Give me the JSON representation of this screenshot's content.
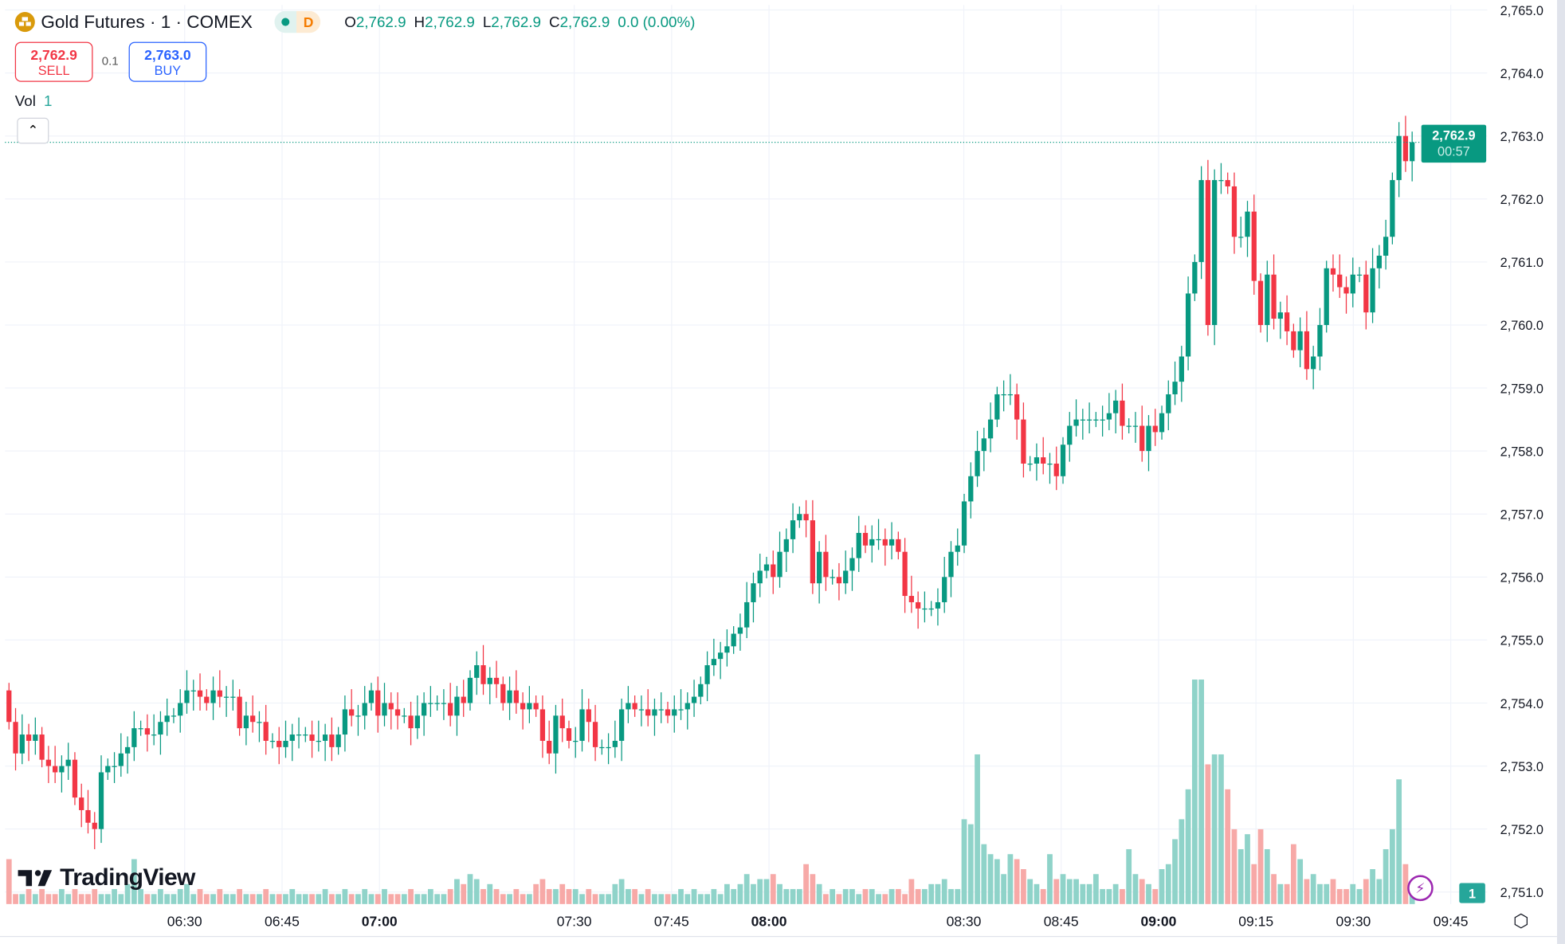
{
  "header": {
    "symbol_title": "Gold Futures · 1 · COMEX",
    "market_status_letter": "D",
    "ohlc": {
      "o_label": "O",
      "o": "2,762.9",
      "h_label": "H",
      "h": "2,762.9",
      "l_label": "L",
      "l": "2,762.9",
      "c_label": "C",
      "c": "2,762.9",
      "change": "0.0 (0.00%)"
    }
  },
  "trade": {
    "sell_price": "2,762.9",
    "sell_label": "SELL",
    "spread": "0.1",
    "buy_price": "2,763.0",
    "buy_label": "BUY"
  },
  "volume_legend": {
    "label": "Vol",
    "value": "1"
  },
  "branding": {
    "logo_text": "TradingView"
  },
  "last_price": {
    "price": "2,762.9",
    "countdown": "00:57"
  },
  "volume_axis_label": "1",
  "colors": {
    "up": "#089981",
    "down": "#f23645",
    "vol_up": "#8fd3c9",
    "vol_down": "#f7a9a7",
    "grid": "#f0f3fa"
  },
  "chart_data": {
    "type": "candlestick",
    "price_axis": {
      "range": [
        2751.0,
        2765.0
      ],
      "ticks": [
        "2,765.0",
        "2,764.0",
        "2,763.0",
        "2,762.0",
        "2,761.0",
        "2,760.0",
        "2,759.0",
        "2,758.0",
        "2,757.0",
        "2,756.0",
        "2,755.0",
        "2,754.0",
        "2,753.0",
        "2,752.0",
        "2,751.0"
      ]
    },
    "time_axis": {
      "ticks": [
        {
          "label": "06:30",
          "bold": false
        },
        {
          "label": "06:45",
          "bold": false
        },
        {
          "label": "07:00",
          "bold": true
        },
        {
          "label": "07:30",
          "bold": false
        },
        {
          "label": "07:45",
          "bold": false
        },
        {
          "label": "08:00",
          "bold": true
        },
        {
          "label": "08:30",
          "bold": false
        },
        {
          "label": "08:45",
          "bold": false
        },
        {
          "label": "09:00",
          "bold": true
        },
        {
          "label": "09:15",
          "bold": false
        },
        {
          "label": "09:30",
          "bold": false
        },
        {
          "label": "09:45",
          "bold": false
        }
      ]
    },
    "grid": true,
    "closes": [
      2753.7,
      2753.2,
      2753.5,
      2753.4,
      2753.5,
      2753.1,
      2753.0,
      2752.9,
      2753.0,
      2753.1,
      2752.5,
      2752.3,
      2752.1,
      2752.0,
      2752.9,
      2753.0,
      2753.0,
      2753.2,
      2753.3,
      2753.6,
      2753.6,
      2753.5,
      2753.5,
      2753.7,
      2753.8,
      2753.8,
      2754.0,
      2754.2,
      2754.2,
      2754.1,
      2754.0,
      2754.2,
      2754.1,
      2754.1,
      2754.1,
      2753.6,
      2753.8,
      2753.7,
      2753.7,
      2753.4,
      2753.4,
      2753.3,
      2753.4,
      2753.5,
      2753.5,
      2753.5,
      2753.4,
      2753.4,
      2753.5,
      2753.3,
      2753.5,
      2753.9,
      2753.8,
      2753.8,
      2754.0,
      2754.2,
      2753.8,
      2754.0,
      2753.9,
      2753.8,
      2753.8,
      2753.6,
      2753.8,
      2754.0,
      2754.0,
      2754.0,
      2754.0,
      2753.8,
      2754.1,
      2754.0,
      2754.4,
      2754.6,
      2754.3,
      2754.4,
      2754.3,
      2754.0,
      2754.2,
      2754.0,
      2753.9,
      2754.0,
      2753.9,
      2753.4,
      2753.2,
      2753.8,
      2753.6,
      2753.4,
      2753.4,
      2753.9,
      2753.7,
      2753.3,
      2753.3,
      2753.3,
      2753.4,
      2753.9,
      2754.0,
      2753.9,
      2753.9,
      2753.8,
      2753.9,
      2753.9,
      2753.8,
      2753.9,
      2753.9,
      2754.0,
      2754.1,
      2754.3,
      2754.6,
      2754.7,
      2754.8,
      2754.9,
      2755.1,
      2755.2,
      2755.6,
      2755.9,
      2756.1,
      2756.2,
      2756.0,
      2756.4,
      2756.6,
      2756.9,
      2757.0,
      2756.9,
      2755.9,
      2756.4,
      2756.0,
      2756.0,
      2755.9,
      2756.1,
      2756.3,
      2756.7,
      2756.5,
      2756.6,
      2756.6,
      2756.5,
      2756.6,
      2756.4,
      2755.7,
      2755.6,
      2755.5,
      2755.5,
      2755.5,
      2755.6,
      2756.0,
      2756.4,
      2756.5,
      2757.2,
      2757.6,
      2758.0,
      2758.2,
      2758.5,
      2758.9,
      2758.9,
      2758.9,
      2758.5,
      2757.8,
      2757.8,
      2757.9,
      2757.8,
      2757.8,
      2757.6,
      2758.1,
      2758.4,
      2758.5,
      2758.5,
      2758.5,
      2758.5,
      2758.5,
      2758.6,
      2758.8,
      2758.4,
      2758.4,
      2758.4,
      2758.0,
      2758.4,
      2758.3,
      2758.6,
      2758.9,
      2759.1,
      2759.5,
      2760.5,
      2761.0,
      2762.3,
      2760.0,
      2762.3,
      2762.3,
      2762.2,
      2761.4,
      2761.4,
      2761.8,
      2760.7,
      2760.0,
      2760.8,
      2760.1,
      2760.2,
      2759.9,
      2759.6,
      2759.9,
      2759.3,
      2759.5,
      2760.0,
      2760.9,
      2760.8,
      2760.6,
      2760.5,
      2760.8,
      2760.8,
      2760.2,
      2760.9,
      2761.1,
      2761.4,
      2762.3,
      2763.0,
      2762.6,
      2762.9
    ],
    "volumes": [
      9,
      2,
      2,
      3,
      2,
      3,
      2,
      2,
      3,
      2,
      3,
      2,
      2,
      3,
      2,
      2,
      3,
      2,
      4,
      9,
      3,
      2,
      2,
      3,
      2,
      2,
      3,
      4,
      2,
      3,
      2,
      2,
      3,
      2,
      2,
      3,
      2,
      2,
      2,
      3,
      2,
      2,
      2,
      3,
      2,
      2,
      2,
      2,
      3,
      2,
      2,
      3,
      2,
      2,
      3,
      2,
      2,
      3,
      2,
      2,
      2,
      3,
      2,
      2,
      3,
      2,
      2,
      3,
      5,
      4,
      6,
      5,
      3,
      4,
      3,
      2,
      2,
      3,
      2,
      2,
      4,
      5,
      3,
      3,
      4,
      3,
      3,
      2,
      3,
      2,
      2,
      2,
      4,
      5,
      3,
      3,
      2,
      3,
      2,
      2,
      2,
      2,
      3,
      2,
      3,
      2,
      2,
      3,
      2,
      4,
      3,
      4,
      6,
      4,
      5,
      5,
      6,
      4,
      3,
      3,
      3,
      8,
      6,
      4,
      2,
      3,
      2,
      3,
      3,
      2,
      3,
      3,
      2,
      2,
      3,
      3,
      2,
      5,
      3,
      3,
      4,
      4,
      5,
      3,
      3,
      17,
      16,
      30,
      12,
      10,
      9,
      6,
      10,
      9,
      7,
      5,
      4,
      3,
      10,
      5,
      6,
      5,
      5,
      4,
      4,
      6,
      3,
      3,
      4,
      3,
      11,
      6,
      5,
      4,
      3,
      7,
      8,
      13,
      17,
      23,
      45,
      45,
      28,
      30,
      30,
      23,
      15,
      11,
      14,
      8,
      15,
      11,
      6,
      4,
      4,
      12,
      9,
      5,
      6,
      4,
      4,
      5,
      3,
      3,
      4,
      3,
      5,
      7,
      5,
      11,
      15,
      25,
      8,
      2
    ]
  }
}
